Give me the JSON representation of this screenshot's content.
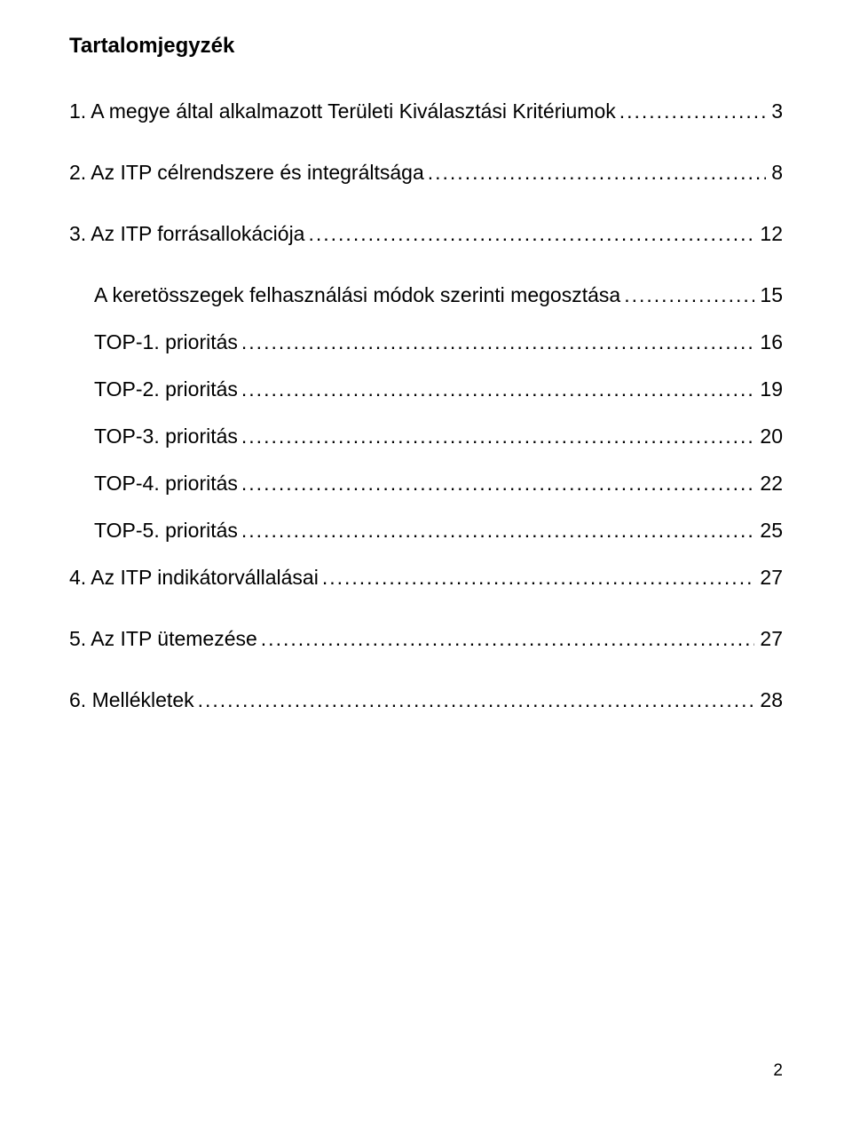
{
  "document": {
    "title": "Tartalomjegyzék",
    "page_number": "2",
    "background_color": "#ffffff",
    "text_color": "#000000",
    "font_family": "Arial",
    "title_fontsize": 24,
    "body_fontsize": 23,
    "toc": [
      {
        "level": 0,
        "label": "1. A megye által alkalmazott Területi Kiválasztási Kritériumok",
        "page": "3"
      },
      {
        "level": 0,
        "label": "2. Az ITP célrendszere és integráltsága",
        "page": "8"
      },
      {
        "level": 0,
        "label": "3. Az ITP forrásallokációja",
        "page": "12"
      },
      {
        "level": 1,
        "label": "A keretösszegek felhasználási módok szerinti megosztása",
        "page": "15"
      },
      {
        "level": 2,
        "label": "TOP-1. prioritás",
        "page": "16"
      },
      {
        "level": 2,
        "label": "TOP-2. prioritás",
        "page": "19"
      },
      {
        "level": 2,
        "label": "TOP-3. prioritás",
        "page": "20"
      },
      {
        "level": 2,
        "label": "TOP-4. prioritás",
        "page": "22"
      },
      {
        "level": 2,
        "label": "TOP-5. prioritás",
        "page": "25"
      },
      {
        "level": 0,
        "label": "4. Az ITP indikátorvállalásai",
        "page": "27"
      },
      {
        "level": 0,
        "label": "5. Az ITP ütemezése",
        "page": "27"
      },
      {
        "level": 0,
        "label": "6. Mellékletek",
        "page": "28"
      }
    ]
  }
}
